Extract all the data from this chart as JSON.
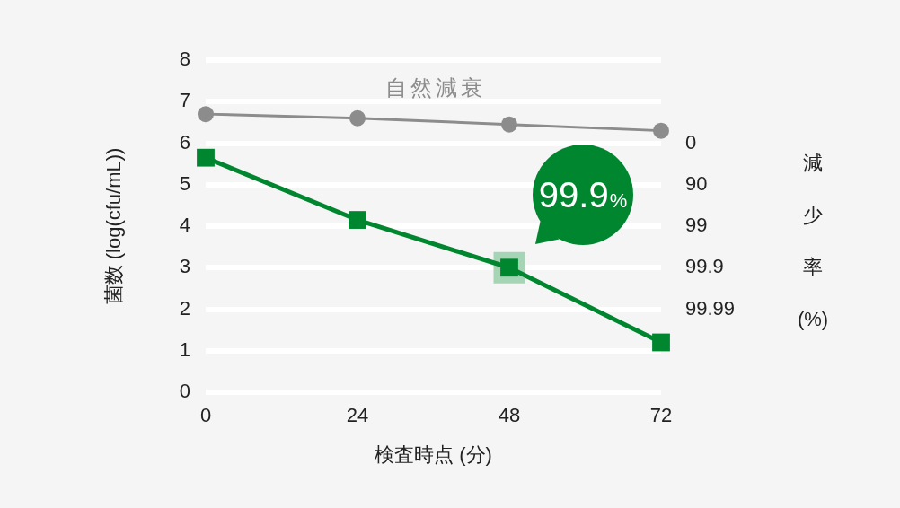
{
  "chart_data": {
    "type": "line",
    "xlabel": "検査時点 (分)",
    "ylabel": "菌数 (log(cfu/mL))",
    "y2label": "減少率(%)",
    "x": [
      0,
      24,
      48,
      72
    ],
    "xlim": [
      0,
      72
    ],
    "xticks": [
      0,
      24,
      48,
      72
    ],
    "ylim": [
      0,
      8
    ],
    "yticks": [
      0,
      1,
      2,
      3,
      4,
      5,
      6,
      7,
      8
    ],
    "y2_categories": [
      null,
      null,
      "0",
      "90",
      "99",
      "99.9",
      "99.99",
      null,
      null
    ],
    "series": [
      {
        "name": "自然減衰",
        "color": "#8c8c8c",
        "marker": "circle",
        "values": [
          6.7,
          6.6,
          6.45,
          6.3
        ]
      },
      {
        "color": "#00862f",
        "marker": "square",
        "values": [
          5.65,
          4.15,
          3.0,
          1.2
        ]
      }
    ],
    "annotations": [
      {
        "text": "99.9%",
        "x": 48,
        "y": 3
      }
    ],
    "grid": "y"
  }
}
